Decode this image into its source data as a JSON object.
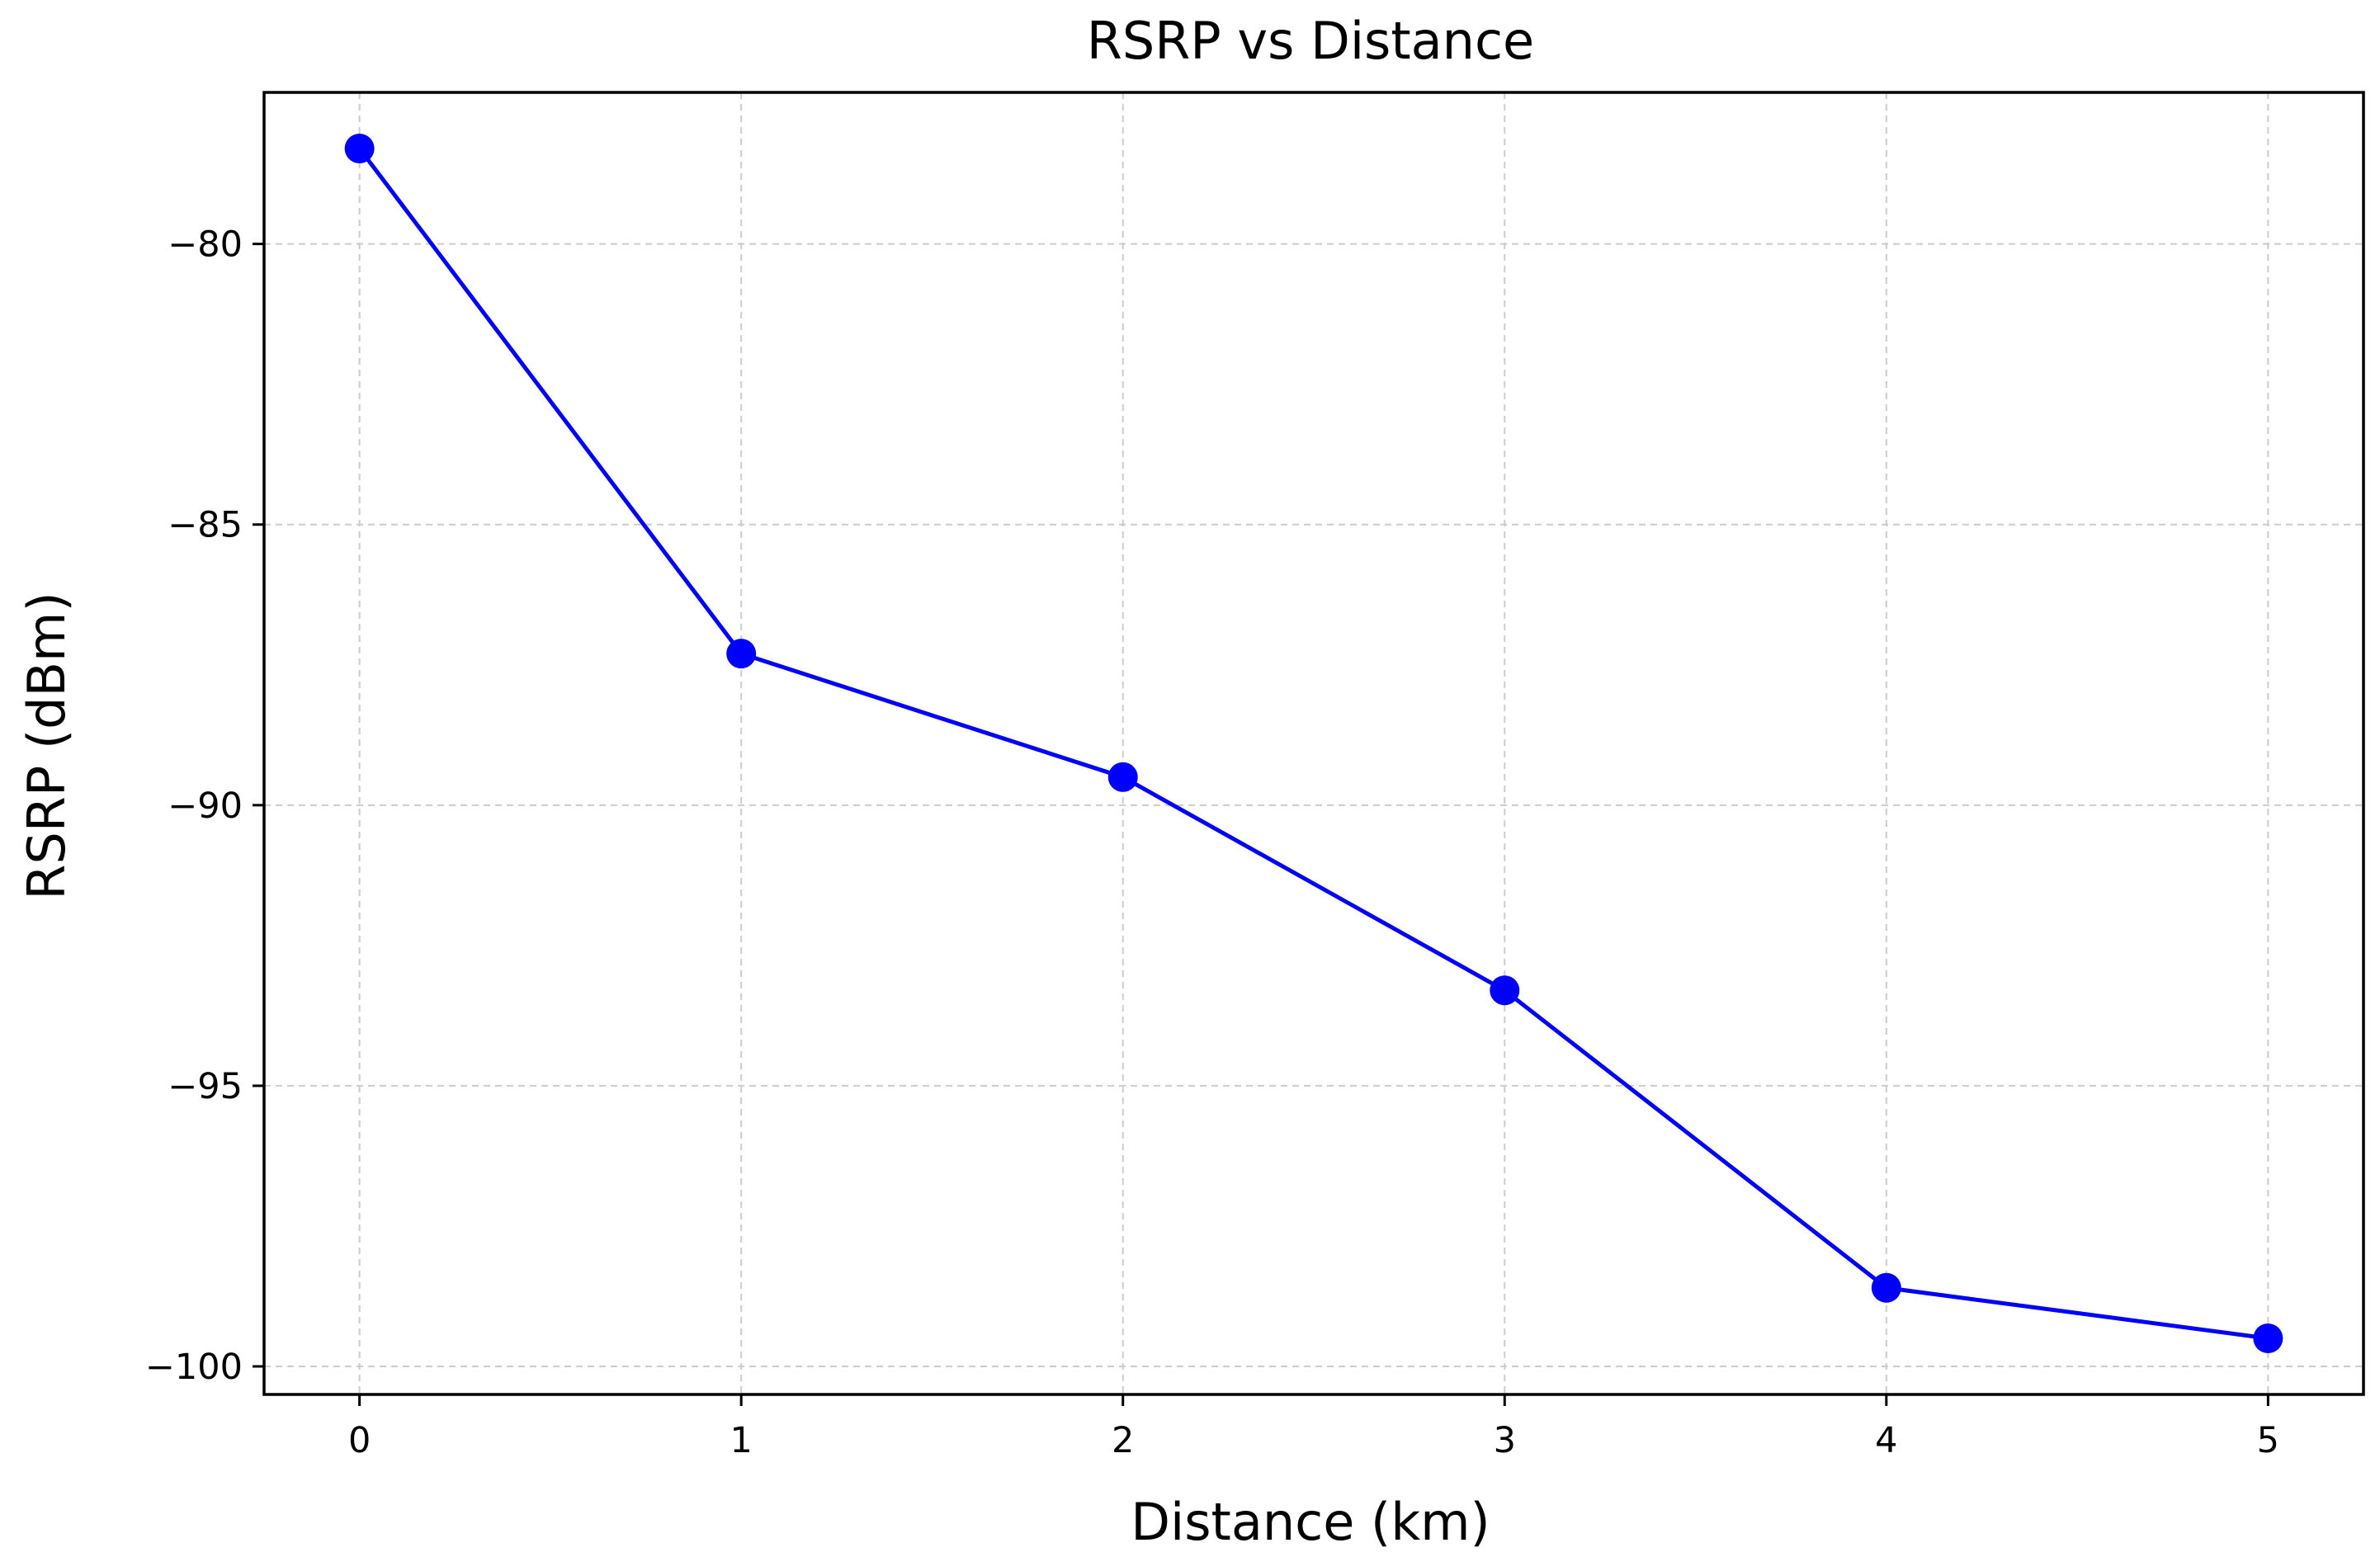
{
  "chart_data": {
    "type": "line",
    "title": "RSRP vs Distance",
    "xlabel": "Distance (km)",
    "ylabel": "RSRP (dBm)",
    "x": [
      0,
      1,
      2,
      3,
      4,
      5
    ],
    "series": [
      {
        "values": [
          -78.3,
          -87.3,
          -89.5,
          -93.3,
          -98.6,
          -99.5
        ],
        "color": "#0000ff",
        "marker": "circle"
      }
    ],
    "xlim": [
      -0.25,
      5.25
    ],
    "ylim": [
      -100.5,
      -77.3
    ],
    "xticks": [
      0,
      1,
      2,
      3,
      4,
      5
    ],
    "xtick_labels": [
      "0",
      "1",
      "2",
      "3",
      "4",
      "5"
    ],
    "yticks": [
      -80,
      -85,
      -90,
      -95,
      -100
    ],
    "ytick_labels": [
      "−80",
      "−85",
      "−90",
      "−95",
      "−100"
    ],
    "grid": true,
    "grid_style": "dashed",
    "legend": false
  }
}
